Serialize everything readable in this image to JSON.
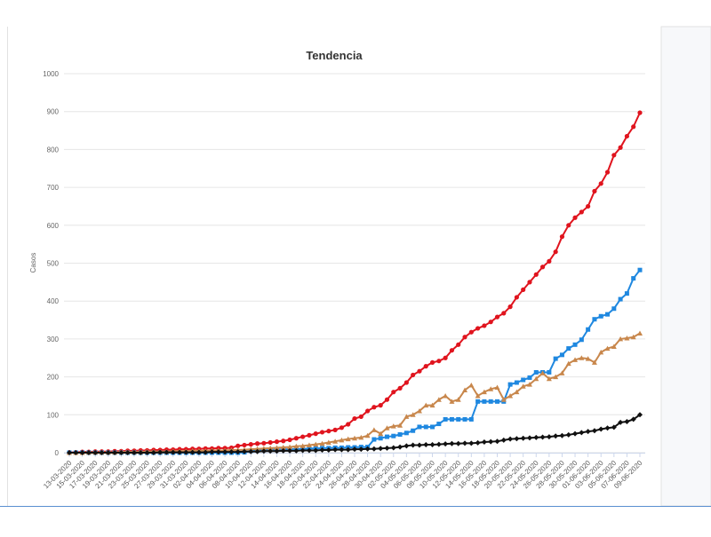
{
  "chart_data": {
    "type": "line",
    "title": "Tendencia",
    "y_label": "Casos",
    "categories": [
      "13-03-2020",
      null,
      "15-03-2020",
      null,
      "17-03-2020",
      null,
      "19-03-2020",
      null,
      "21-03-2020",
      null,
      "23-03-2020",
      null,
      "25-03-2020",
      null,
      "27-03-2020",
      null,
      "29-03-2020",
      null,
      "31-03-2020",
      null,
      "02-04-2020",
      null,
      "04-04-2020",
      null,
      "06-04-2020",
      null,
      "08-04-2020",
      null,
      "10-04-2020",
      null,
      "12-04-2020",
      null,
      "14-04-2020",
      null,
      "16-04-2020",
      null,
      "18-04-2020",
      null,
      "20-04-2020",
      null,
      "22-04-2020",
      null,
      "24-04-2020",
      null,
      "26-04-2020",
      null,
      "28-04-2020",
      null,
      "30-04-2020",
      null,
      "02-05-2020",
      null,
      "04-05-2020",
      null,
      "06-05-2020",
      null,
      "08-05-2020",
      null,
      "10-05-2020",
      null,
      "12-05-2020",
      null,
      "14-05-2020",
      null,
      "16-05-2020",
      null,
      "18-05-2020",
      null,
      "20-05-2020",
      null,
      "22-05-2020",
      null,
      "24-05-2020",
      null,
      "26-05-2020",
      null,
      "28-05-2020",
      null,
      "30-05-2020",
      null,
      "01-06-2020",
      null,
      "03-06-2020",
      null,
      "05-06-2020",
      null,
      "07-06-2020",
      null,
      "09-06-2020"
    ],
    "series": [
      {
        "color": "#e0141e",
        "marker": "circle",
        "values": [
          1,
          1,
          2,
          2,
          3,
          3,
          3,
          4,
          4,
          5,
          5,
          6,
          6,
          7,
          7,
          8,
          8,
          9,
          9,
          10,
          10,
          11,
          11,
          12,
          12,
          13,
          18,
          20,
          22,
          24,
          25,
          27,
          29,
          31,
          34,
          38,
          42,
          46,
          50,
          54,
          57,
          60,
          66,
          75,
          90,
          95,
          110,
          120,
          125,
          140,
          160,
          170,
          185,
          205,
          215,
          228,
          238,
          242,
          250,
          270,
          285,
          305,
          318,
          328,
          335,
          345,
          358,
          368,
          385,
          410,
          430,
          450,
          470,
          490,
          505,
          530,
          570,
          600,
          620,
          635,
          650,
          690,
          710,
          740,
          785,
          805,
          835,
          860,
          897
        ]
      },
      {
        "color": "#1f88e0",
        "marker": "square",
        "values": [
          0,
          0,
          0,
          0,
          0,
          0,
          0,
          0,
          0,
          0,
          0,
          0,
          0,
          0,
          0,
          0,
          0,
          0,
          0,
          0,
          0,
          0,
          0,
          0,
          0,
          0,
          0,
          1,
          5,
          6,
          7,
          8,
          8,
          9,
          9,
          10,
          10,
          11,
          11,
          12,
          12,
          13,
          13,
          14,
          14,
          15,
          15,
          35,
          38,
          42,
          44,
          48,
          52,
          58,
          68,
          68,
          68,
          76,
          88,
          88,
          88,
          88,
          88,
          135,
          135,
          135,
          135,
          135,
          180,
          185,
          192,
          198,
          212,
          212,
          212,
          248,
          258,
          275,
          285,
          298,
          325,
          352,
          360,
          365,
          380,
          405,
          420,
          460,
          482
        ]
      },
      {
        "color": "#c8874c",
        "marker": "triangle",
        "values": [
          0,
          0,
          0,
          1,
          1,
          1,
          1,
          1,
          2,
          2,
          2,
          2,
          3,
          3,
          3,
          3,
          4,
          4,
          4,
          5,
          5,
          5,
          6,
          6,
          6,
          7,
          7,
          8,
          9,
          10,
          11,
          12,
          13,
          14,
          15,
          17,
          18,
          20,
          22,
          24,
          27,
          30,
          33,
          36,
          38,
          40,
          45,
          60,
          50,
          65,
          70,
          72,
          95,
          100,
          110,
          125,
          125,
          140,
          150,
          135,
          140,
          165,
          178,
          150,
          160,
          168,
          172,
          140,
          150,
          160,
          175,
          180,
          195,
          210,
          195,
          200,
          210,
          235,
          245,
          250,
          248,
          238,
          265,
          275,
          280,
          300,
          302,
          305,
          315
        ]
      },
      {
        "color": "#111111",
        "marker": "diamond",
        "values": [
          0,
          0,
          0,
          0,
          0,
          0,
          0,
          0,
          0,
          0,
          0,
          0,
          0,
          0,
          1,
          1,
          1,
          1,
          1,
          1,
          1,
          1,
          2,
          2,
          2,
          2,
          2,
          3,
          3,
          3,
          4,
          4,
          4,
          5,
          5,
          5,
          6,
          6,
          6,
          7,
          7,
          8,
          8,
          8,
          9,
          9,
          10,
          10,
          11,
          12,
          13,
          15,
          18,
          20,
          20,
          21,
          21,
          22,
          23,
          24,
          24,
          25,
          25,
          26,
          28,
          29,
          30,
          33,
          36,
          37,
          38,
          39,
          40,
          41,
          42,
          44,
          45,
          47,
          50,
          53,
          56,
          58,
          62,
          65,
          67,
          80,
          82,
          88,
          100
        ]
      }
    ],
    "ylim": [
      0,
      1000
    ],
    "yticks": [
      0,
      100,
      200,
      300,
      400,
      500,
      600,
      700,
      800,
      900,
      1000
    ],
    "grid": true
  }
}
